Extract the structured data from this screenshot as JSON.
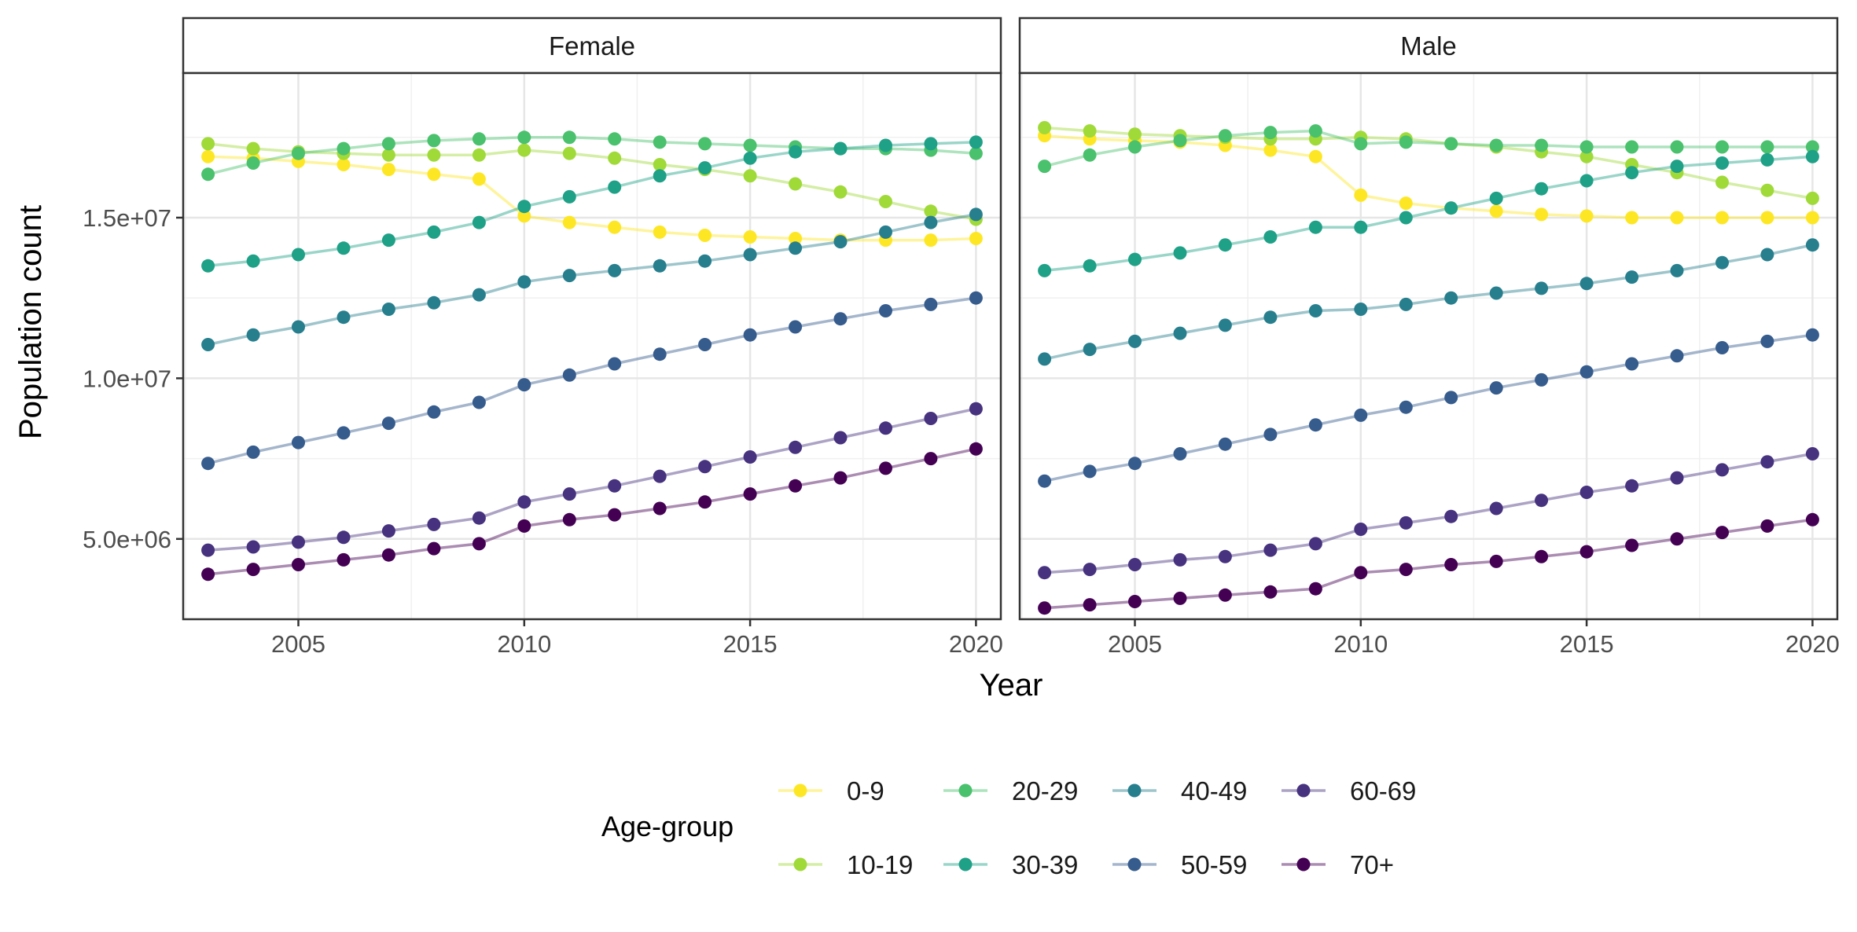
{
  "chart_data": {
    "type": "line",
    "facet_by": "sex",
    "facets": [
      "Female",
      "Male"
    ],
    "xlabel": "Year",
    "ylabel": "Population count",
    "xlim": [
      2002.45,
      2020.55
    ],
    "ylim": [
      2500000,
      19500000
    ],
    "x_ticks": [
      2005,
      2010,
      2015,
      2020
    ],
    "x_tick_labels": [
      "2005",
      "2010",
      "2015",
      "2020"
    ],
    "y_ticks": [
      5000000,
      10000000,
      15000000
    ],
    "y_tick_labels": [
      "5.0e+06",
      "1.0e+07",
      "1.5e+07"
    ],
    "grid": true,
    "legend": {
      "title": "Age-group",
      "position": "bottom",
      "items": [
        "0-9",
        "10-19",
        "20-29",
        "30-39",
        "40-49",
        "50-59",
        "60-69",
        "70+"
      ]
    },
    "colors": {
      "0-9": "#FDE725",
      "10-19": "#A0DA39",
      "20-29": "#4AC16D",
      "30-39": "#1FA187",
      "40-49": "#277F8E",
      "50-59": "#365C8D",
      "60-69": "#46327E",
      "70+": "#440154"
    },
    "x": [
      2003,
      2004,
      2005,
      2006,
      2007,
      2008,
      2009,
      2010,
      2011,
      2012,
      2013,
      2014,
      2015,
      2016,
      2017,
      2018,
      2019,
      2020
    ],
    "panels": [
      {
        "facet": "Female",
        "series": [
          {
            "name": "0-9",
            "values": [
              16900000,
              16850000,
              16750000,
              16650000,
              16500000,
              16350000,
              16200000,
              15050000,
              14850000,
              14700000,
              14550000,
              14450000,
              14400000,
              14350000,
              14300000,
              14300000,
              14300000,
              14350000
            ]
          },
          {
            "name": "10-19",
            "values": [
              17300000,
              17150000,
              17050000,
              17000000,
              16950000,
              16950000,
              16950000,
              17100000,
              17000000,
              16850000,
              16650000,
              16500000,
              16300000,
              16050000,
              15800000,
              15500000,
              15200000,
              14950000
            ]
          },
          {
            "name": "20-29",
            "values": [
              16350000,
              16700000,
              17000000,
              17150000,
              17300000,
              17400000,
              17450000,
              17500000,
              17500000,
              17450000,
              17350000,
              17300000,
              17250000,
              17200000,
              17150000,
              17150000,
              17100000,
              17000000
            ]
          },
          {
            "name": "30-39",
            "values": [
              13500000,
              13650000,
              13850000,
              14050000,
              14300000,
              14550000,
              14850000,
              15350000,
              15650000,
              15950000,
              16300000,
              16550000,
              16850000,
              17050000,
              17150000,
              17250000,
              17300000,
              17350000
            ]
          },
          {
            "name": "40-49",
            "values": [
              11050000,
              11350000,
              11600000,
              11900000,
              12150000,
              12350000,
              12600000,
              13000000,
              13200000,
              13350000,
              13500000,
              13650000,
              13850000,
              14050000,
              14250000,
              14550000,
              14850000,
              15100000
            ]
          },
          {
            "name": "50-59",
            "values": [
              7350000,
              7700000,
              8000000,
              8300000,
              8600000,
              8950000,
              9250000,
              9800000,
              10100000,
              10450000,
              10750000,
              11050000,
              11350000,
              11600000,
              11850000,
              12100000,
              12300000,
              12500000
            ]
          },
          {
            "name": "60-69",
            "values": [
              4650000,
              4750000,
              4900000,
              5050000,
              5250000,
              5450000,
              5650000,
              6150000,
              6400000,
              6650000,
              6950000,
              7250000,
              7550000,
              7850000,
              8150000,
              8450000,
              8750000,
              9050000
            ]
          },
          {
            "name": "70+",
            "values": [
              3900000,
              4050000,
              4200000,
              4350000,
              4500000,
              4700000,
              4850000,
              5400000,
              5600000,
              5750000,
              5950000,
              6150000,
              6400000,
              6650000,
              6900000,
              7200000,
              7500000,
              7800000
            ]
          }
        ]
      },
      {
        "facet": "Male",
        "series": [
          {
            "name": "0-9",
            "values": [
              17550000,
              17450000,
              17400000,
              17350000,
              17250000,
              17100000,
              16900000,
              15700000,
              15450000,
              15300000,
              15200000,
              15100000,
              15050000,
              15000000,
              15000000,
              15000000,
              15000000,
              15000000
            ]
          },
          {
            "name": "10-19",
            "values": [
              17800000,
              17700000,
              17600000,
              17550000,
              17500000,
              17450000,
              17450000,
              17500000,
              17450000,
              17300000,
              17200000,
              17050000,
              16900000,
              16650000,
              16400000,
              16100000,
              15850000,
              15600000
            ]
          },
          {
            "name": "20-29",
            "values": [
              16600000,
              16950000,
              17200000,
              17400000,
              17550000,
              17650000,
              17700000,
              17300000,
              17350000,
              17300000,
              17250000,
              17250000,
              17200000,
              17200000,
              17200000,
              17200000,
              17200000,
              17200000
            ]
          },
          {
            "name": "30-39",
            "values": [
              13350000,
              13500000,
              13700000,
              13900000,
              14150000,
              14400000,
              14700000,
              14700000,
              15000000,
              15300000,
              15600000,
              15900000,
              16150000,
              16400000,
              16600000,
              16700000,
              16800000,
              16900000
            ]
          },
          {
            "name": "40-49",
            "values": [
              10600000,
              10900000,
              11150000,
              11400000,
              11650000,
              11900000,
              12100000,
              12150000,
              12300000,
              12500000,
              12650000,
              12800000,
              12950000,
              13150000,
              13350000,
              13600000,
              13850000,
              14150000
            ]
          },
          {
            "name": "50-59",
            "values": [
              6800000,
              7100000,
              7350000,
              7650000,
              7950000,
              8250000,
              8550000,
              8850000,
              9100000,
              9400000,
              9700000,
              9950000,
              10200000,
              10450000,
              10700000,
              10950000,
              11150000,
              11350000
            ]
          },
          {
            "name": "60-69",
            "values": [
              3950000,
              4050000,
              4200000,
              4350000,
              4450000,
              4650000,
              4850000,
              5300000,
              5500000,
              5700000,
              5950000,
              6200000,
              6450000,
              6650000,
              6900000,
              7150000,
              7400000,
              7650000
            ]
          },
          {
            "name": "70+",
            "values": [
              2850000,
              2950000,
              3050000,
              3150000,
              3250000,
              3350000,
              3450000,
              3950000,
              4050000,
              4200000,
              4300000,
              4450000,
              4600000,
              4800000,
              5000000,
              5200000,
              5400000,
              5600000
            ]
          }
        ]
      }
    ]
  }
}
